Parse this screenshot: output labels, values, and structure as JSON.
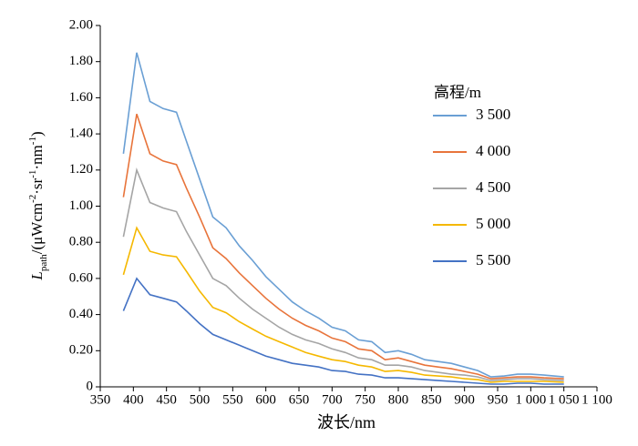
{
  "chart_data": {
    "type": "line",
    "xlabel": "波长/nm",
    "ylabel_parts": [
      "L",
      "path",
      "/(μWcm",
      "-2",
      "·sr",
      "-1",
      "·nm",
      "-1",
      ")"
    ],
    "legend_title": "高程/m",
    "x": [
      385,
      405,
      425,
      445,
      465,
      480,
      500,
      520,
      540,
      560,
      580,
      600,
      620,
      640,
      660,
      680,
      700,
      720,
      740,
      760,
      780,
      800,
      820,
      840,
      860,
      880,
      900,
      920,
      940,
      960,
      980,
      1000,
      1020,
      1050
    ],
    "series": [
      {
        "name": "3 500",
        "color": "#6a9fd4",
        "values": [
          1.29,
          1.85,
          1.58,
          1.54,
          1.52,
          1.36,
          1.15,
          0.94,
          0.88,
          0.78,
          0.7,
          0.61,
          0.54,
          0.47,
          0.42,
          0.38,
          0.33,
          0.31,
          0.26,
          0.25,
          0.19,
          0.2,
          0.18,
          0.15,
          0.14,
          0.13,
          0.11,
          0.09,
          0.055,
          0.06,
          0.07,
          0.07,
          0.065,
          0.055
        ]
      },
      {
        "name": "4 000",
        "color": "#e8743b",
        "values": [
          1.05,
          1.51,
          1.29,
          1.25,
          1.23,
          1.1,
          0.94,
          0.77,
          0.71,
          0.63,
          0.56,
          0.49,
          0.43,
          0.38,
          0.34,
          0.31,
          0.27,
          0.25,
          0.21,
          0.2,
          0.15,
          0.16,
          0.14,
          0.12,
          0.11,
          0.1,
          0.085,
          0.07,
          0.045,
          0.05,
          0.055,
          0.055,
          0.05,
          0.045
        ]
      },
      {
        "name": "4 500",
        "color": "#a5a5a5",
        "values": [
          0.83,
          1.2,
          1.02,
          0.99,
          0.97,
          0.86,
          0.73,
          0.6,
          0.56,
          0.49,
          0.43,
          0.38,
          0.33,
          0.29,
          0.26,
          0.24,
          0.21,
          0.19,
          0.16,
          0.15,
          0.12,
          0.12,
          0.11,
          0.09,
          0.08,
          0.07,
          0.065,
          0.055,
          0.035,
          0.04,
          0.045,
          0.045,
          0.04,
          0.035
        ]
      },
      {
        "name": "5 000",
        "color": "#f5b800",
        "values": [
          0.62,
          0.88,
          0.75,
          0.73,
          0.72,
          0.64,
          0.53,
          0.44,
          0.41,
          0.36,
          0.32,
          0.28,
          0.25,
          0.22,
          0.19,
          0.17,
          0.15,
          0.14,
          0.12,
          0.11,
          0.085,
          0.09,
          0.08,
          0.065,
          0.06,
          0.055,
          0.045,
          0.04,
          0.025,
          0.03,
          0.03,
          0.03,
          0.03,
          0.025
        ]
      },
      {
        "name": "5 500",
        "color": "#4472c4",
        "values": [
          0.42,
          0.6,
          0.51,
          0.49,
          0.47,
          0.42,
          0.35,
          0.29,
          0.26,
          0.23,
          0.2,
          0.17,
          0.15,
          0.13,
          0.12,
          0.11,
          0.09,
          0.085,
          0.07,
          0.065,
          0.05,
          0.05,
          0.045,
          0.04,
          0.035,
          0.03,
          0.025,
          0.02,
          0.015,
          0.015,
          0.02,
          0.02,
          0.015,
          0.015
        ]
      }
    ],
    "xlim": [
      350,
      1100
    ],
    "xticks": [
      350,
      400,
      450,
      500,
      550,
      600,
      650,
      700,
      750,
      800,
      850,
      900,
      950,
      {
        "value": 1000,
        "label": "1 000"
      },
      {
        "value": 1050,
        "label": "1 050"
      },
      {
        "value": 1100,
        "label": "1 100"
      }
    ],
    "ylim": [
      0,
      2
    ],
    "yticks": [
      0,
      {
        "value": 0.2,
        "label": "0.20"
      },
      {
        "value": 0.4,
        "label": "0.40"
      },
      {
        "value": 0.6,
        "label": "0.60"
      },
      {
        "value": 0.8,
        "label": "0.80"
      },
      {
        "value": 1,
        "label": "1.00"
      },
      {
        "value": 1.2,
        "label": "1.20"
      },
      {
        "value": 1.4,
        "label": "1.40"
      },
      {
        "value": 1.6,
        "label": "1.60"
      },
      {
        "value": 1.8,
        "label": "1.80"
      },
      {
        "value": 2,
        "label": "2.00"
      }
    ],
    "grid": false,
    "legend": "right"
  }
}
